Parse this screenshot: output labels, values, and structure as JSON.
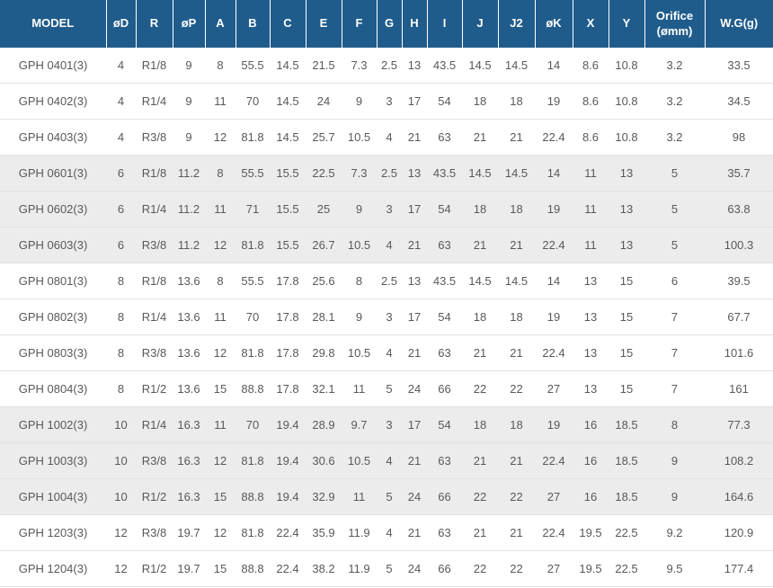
{
  "colors": {
    "header_bg": "#1F5C8C",
    "header_text": "#FFFFFF",
    "shaded_row_bg": "#ECECEC",
    "row_text": "#58595B",
    "divider": "#E1E1E1"
  },
  "chart_data": {
    "type": "table",
    "legend_position": "none",
    "grid": "horizontal-dividers-with-group-banding",
    "columns": [
      {
        "key": "model",
        "label": "MODEL"
      },
      {
        "key": "od",
        "label": "øD"
      },
      {
        "key": "r",
        "label": "R"
      },
      {
        "key": "op",
        "label": "øP"
      },
      {
        "key": "a",
        "label": "A"
      },
      {
        "key": "b",
        "label": "B"
      },
      {
        "key": "c",
        "label": "C"
      },
      {
        "key": "e",
        "label": "E"
      },
      {
        "key": "f",
        "label": "F"
      },
      {
        "key": "g",
        "label": "G"
      },
      {
        "key": "h",
        "label": "H"
      },
      {
        "key": "i",
        "label": "I"
      },
      {
        "key": "j",
        "label": "J"
      },
      {
        "key": "j2",
        "label": "J2"
      },
      {
        "key": "ok",
        "label": "øK"
      },
      {
        "key": "x",
        "label": "X"
      },
      {
        "key": "y",
        "label": "Y"
      },
      {
        "key": "orifice",
        "label": "Orifice (ømm)"
      },
      {
        "key": "wg",
        "label": "W.G(g)"
      }
    ],
    "rows": [
      {
        "shaded": false,
        "cells": [
          "GPH 0401(3)",
          "4",
          "R1/8",
          "9",
          "8",
          "55.5",
          "14.5",
          "21.5",
          "7.3",
          "2.5",
          "13",
          "43.5",
          "14.5",
          "14.5",
          "14",
          "8.6",
          "10.8",
          "3.2",
          "33.5"
        ]
      },
      {
        "shaded": false,
        "cells": [
          "GPH 0402(3)",
          "4",
          "R1/4",
          "9",
          "11",
          "70",
          "14.5",
          "24",
          "9",
          "3",
          "17",
          "54",
          "18",
          "18",
          "19",
          "8.6",
          "10.8",
          "3.2",
          "34.5"
        ]
      },
      {
        "shaded": false,
        "cells": [
          "GPH 0403(3)",
          "4",
          "R3/8",
          "9",
          "12",
          "81.8",
          "14.5",
          "25.7",
          "10.5",
          "4",
          "21",
          "63",
          "21",
          "21",
          "22.4",
          "8.6",
          "10.8",
          "3.2",
          "98"
        ]
      },
      {
        "shaded": true,
        "cells": [
          "GPH 0601(3)",
          "6",
          "R1/8",
          "11.2",
          "8",
          "55.5",
          "15.5",
          "22.5",
          "7.3",
          "2.5",
          "13",
          "43.5",
          "14.5",
          "14.5",
          "14",
          "11",
          "13",
          "5",
          "35.7"
        ]
      },
      {
        "shaded": true,
        "cells": [
          "GPH 0602(3)",
          "6",
          "R1/4",
          "11.2",
          "11",
          "71",
          "15.5",
          "25",
          "9",
          "3",
          "17",
          "54",
          "18",
          "18",
          "19",
          "11",
          "13",
          "5",
          "63.8"
        ]
      },
      {
        "shaded": true,
        "cells": [
          "GPH 0603(3)",
          "6",
          "R3/8",
          "11.2",
          "12",
          "81.8",
          "15.5",
          "26.7",
          "10.5",
          "4",
          "21",
          "63",
          "21",
          "21",
          "22.4",
          "11",
          "13",
          "5",
          "100.3"
        ]
      },
      {
        "shaded": false,
        "cells": [
          "GPH 0801(3)",
          "8",
          "R1/8",
          "13.6",
          "8",
          "55.5",
          "17.8",
          "25.6",
          "8",
          "2.5",
          "13",
          "43.5",
          "14.5",
          "14.5",
          "14",
          "13",
          "15",
          "6",
          "39.5"
        ]
      },
      {
        "shaded": false,
        "cells": [
          "GPH 0802(3)",
          "8",
          "R1/4",
          "13.6",
          "11",
          "70",
          "17.8",
          "28.1",
          "9",
          "3",
          "17",
          "54",
          "18",
          "18",
          "19",
          "13",
          "15",
          "7",
          "67.7"
        ]
      },
      {
        "shaded": false,
        "cells": [
          "GPH 0803(3)",
          "8",
          "R3/8",
          "13.6",
          "12",
          "81.8",
          "17.8",
          "29.8",
          "10.5",
          "4",
          "21",
          "63",
          "21",
          "21",
          "22.4",
          "13",
          "15",
          "7",
          "101.6"
        ]
      },
      {
        "shaded": false,
        "cells": [
          "GPH 0804(3)",
          "8",
          "R1/2",
          "13.6",
          "15",
          "88.8",
          "17.8",
          "32.1",
          "11",
          "5",
          "24",
          "66",
          "22",
          "22",
          "27",
          "13",
          "15",
          "7",
          "161"
        ]
      },
      {
        "shaded": true,
        "cells": [
          "GPH 1002(3)",
          "10",
          "R1/4",
          "16.3",
          "11",
          "70",
          "19.4",
          "28.9",
          "9.7",
          "3",
          "17",
          "54",
          "18",
          "18",
          "19",
          "16",
          "18.5",
          "8",
          "77.3"
        ]
      },
      {
        "shaded": true,
        "cells": [
          "GPH 1003(3)",
          "10",
          "R3/8",
          "16.3",
          "12",
          "81.8",
          "19.4",
          "30.6",
          "10.5",
          "4",
          "21",
          "63",
          "21",
          "21",
          "22.4",
          "16",
          "18.5",
          "9",
          "108.2"
        ]
      },
      {
        "shaded": true,
        "cells": [
          "GPH 1004(3)",
          "10",
          "R1/2",
          "16.3",
          "15",
          "88.8",
          "19.4",
          "32.9",
          "11",
          "5",
          "24",
          "66",
          "22",
          "22",
          "27",
          "16",
          "18.5",
          "9",
          "164.6"
        ]
      },
      {
        "shaded": false,
        "cells": [
          "GPH 1203(3)",
          "12",
          "R3/8",
          "19.7",
          "12",
          "81.8",
          "22.4",
          "35.9",
          "11.9",
          "4",
          "21",
          "63",
          "21",
          "21",
          "22.4",
          "19.5",
          "22.5",
          "9.2",
          "120.9"
        ]
      },
      {
        "shaded": false,
        "cells": [
          "GPH 1204(3)",
          "12",
          "R1/2",
          "19.7",
          "15",
          "88.8",
          "22.4",
          "38.2",
          "11.9",
          "5",
          "24",
          "66",
          "22",
          "22",
          "27",
          "19.5",
          "22.5",
          "9.5",
          "177.4"
        ]
      }
    ]
  }
}
